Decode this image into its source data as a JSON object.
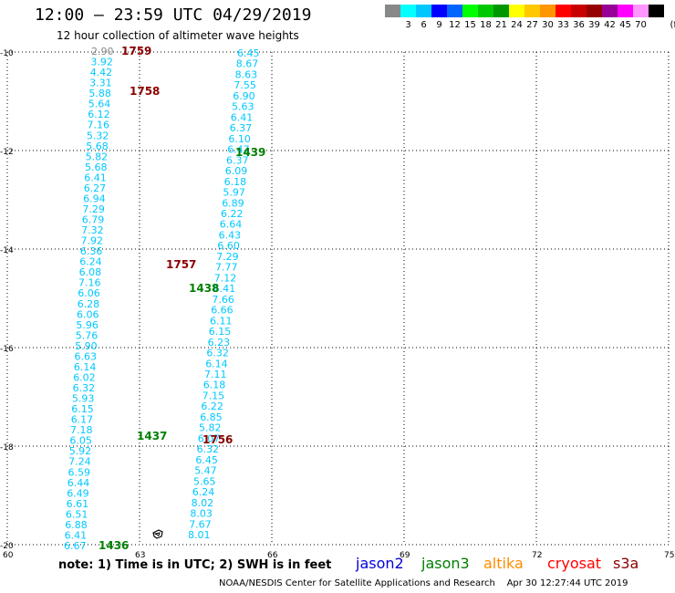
{
  "header": {
    "title": "12:00 – 23:59 UTC 04/29/2019",
    "subtitle": "12 hour collection of altimeter wave heights"
  },
  "scale": {
    "unit": "(ft)",
    "colors": [
      "#888888",
      "#00ffff",
      "#00c8ff",
      "#0000ff",
      "#0064ff",
      "#00ff00",
      "#00c800",
      "#009600",
      "#ffff00",
      "#ffc800",
      "#ff9600",
      "#ff0000",
      "#c80000",
      "#960000",
      "#960096",
      "#ff00ff",
      "#ff96ff",
      "#000000"
    ],
    "labels": [
      "3",
      "6",
      "9",
      "12",
      "15",
      "18",
      "21",
      "24",
      "27",
      "30",
      "33",
      "36",
      "39",
      "42",
      "45",
      "70"
    ]
  },
  "axes": {
    "y_labels": [
      "-10",
      "-12",
      "-14",
      "-16",
      "-18",
      "-20"
    ],
    "x_labels": [
      "60",
      "63",
      "66",
      "69",
      "72",
      "75"
    ]
  },
  "tracks": {
    "left": [
      "2.90",
      "3.92",
      "4.42",
      "3.31",
      "5.88",
      "5.64",
      "6.12",
      "7.16",
      "5.32",
      "5.68",
      "5.82",
      "5.68",
      "6.41",
      "6.27",
      "6.94",
      "7.29",
      "6.79",
      "7.32",
      "7.92",
      "6.36",
      "6.24",
      "6.08",
      "7.16",
      "6.06",
      "6.28",
      "6.06",
      "5.96",
      "5.76",
      "5.90",
      "6.63",
      "6.14",
      "6.02",
      "6.32",
      "5.93",
      "6.15",
      "6.17",
      "7.18",
      "6.05",
      "5.92",
      "7.24",
      "6.59",
      "6.44",
      "6.49",
      "6.61",
      "6.51",
      "6.88",
      "6.41",
      "6.67"
    ],
    "right": [
      "6.45",
      "8.67",
      "8.63",
      "7.55",
      "6.90",
      "5.63",
      "6.41",
      "6.37",
      "6.10",
      "6.47",
      "6.37",
      "6.09",
      "6.18",
      "5.97",
      "6.89",
      "6.22",
      "6.64",
      "6.43",
      "6.60",
      "7.29",
      "7.77",
      "7.12",
      "6.41",
      "7.66",
      "6.66",
      "6.11",
      "6.15",
      "6.23",
      "6.32",
      "6.14",
      "7.11",
      "6.18",
      "7.15",
      "6.22",
      "6.85",
      "5.82",
      "6.07",
      "6.32",
      "6.45",
      "5.47",
      "5.65",
      "6.24",
      "8.02",
      "8.03",
      "7.67",
      "8.01"
    ]
  },
  "time_labels": [
    {
      "text": "1759",
      "color": "#8b0000"
    },
    {
      "text": "1758",
      "color": "#8b0000"
    },
    {
      "text": "1439",
      "color": "#008000"
    },
    {
      "text": "1757",
      "color": "#8b0000"
    },
    {
      "text": "1438",
      "color": "#008000"
    },
    {
      "text": "1437",
      "color": "#008000"
    },
    {
      "text": "1756",
      "color": "#8b0000"
    },
    {
      "text": "1436",
      "color": "#008000"
    }
  ],
  "footer": {
    "note": "note:  1) Time is in UTC;  2) SWH is in feet",
    "satellites": [
      {
        "name": "jason2",
        "color": "#0000dd"
      },
      {
        "name": "jason3",
        "color": "#008000"
      },
      {
        "name": "altika",
        "color": "#ff8c00"
      },
      {
        "name": "cryosat",
        "color": "#ff0000"
      },
      {
        "name": "s3a",
        "color": "#8b0000"
      }
    ],
    "credit": "NOAA/NESDIS Center for Satellite Applications and Research",
    "timestamp": "Apr 30 12:27:44 UTC 2019"
  }
}
